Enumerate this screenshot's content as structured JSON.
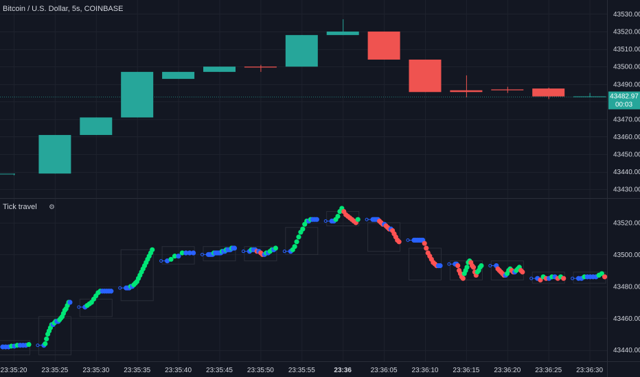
{
  "header": {
    "symbol_title": "Bitcoin / U.S. Dollar, 5s, COINBASE"
  },
  "indicator": {
    "name": "Tick travel",
    "settings_glyph": "⚙"
  },
  "last_price": {
    "value": 43482.97,
    "label": "43482.97",
    "countdown": "00:03"
  },
  "colors": {
    "background": "#131722",
    "grid": "#1e222d",
    "up": "#26a69a",
    "down": "#ef5350",
    "dot_up": "#00e676",
    "dot_down": "#ff5252",
    "dot_flat": "#2962ff",
    "axis_text": "#d1d4dc",
    "price_line": "#26a69a"
  },
  "chart_data": [
    {
      "type": "candlestick",
      "panel": "main",
      "title": "Bitcoin / U.S. Dollar, 5s, COINBASE",
      "ylim": [
        43425,
        43538
      ],
      "y_ticks": [
        43430,
        43440,
        43450,
        43460,
        43470,
        43480,
        43490,
        43500,
        43510,
        43520,
        43530
      ],
      "y_tick_labels": [
        "43430.00",
        "43440.00",
        "43450.00",
        "43460.00",
        "43470.00",
        "43480.00",
        "43490.00",
        "43500.00",
        "43510.00",
        "43520.00",
        "43530.00"
      ],
      "x_ticks": [
        "23:35:20",
        "23:35:25",
        "23:35:30",
        "23:35:35",
        "23:35:40",
        "23:35:45",
        "23:35:50",
        "23:35:55",
        "23:36",
        "23:36:05",
        "23:36:10",
        "23:36:15",
        "23:36:20",
        "23:36:25",
        "23:36:30"
      ],
      "candles": [
        {
          "time": "23:35:20",
          "open": 43438.5,
          "high": 43439,
          "low": 43438,
          "close": 43438.9
        },
        {
          "time": "23:35:25",
          "open": 43439,
          "high": 43461,
          "low": 43439,
          "close": 43461
        },
        {
          "time": "23:35:30",
          "open": 43461,
          "high": 43471,
          "low": 43461,
          "close": 43471
        },
        {
          "time": "23:35:35",
          "open": 43471,
          "high": 43497,
          "low": 43471,
          "close": 43497
        },
        {
          "time": "23:35:40",
          "open": 43493,
          "high": 43497,
          "low": 43493,
          "close": 43497
        },
        {
          "time": "23:35:45",
          "open": 43497,
          "high": 43500,
          "low": 43497,
          "close": 43500
        },
        {
          "time": "23:35:50",
          "open": 43500,
          "high": 43501,
          "low": 43497,
          "close": 43499.5
        },
        {
          "time": "23:35:55",
          "open": 43500,
          "high": 43518,
          "low": 43500,
          "close": 43518
        },
        {
          "time": "23:36",
          "open": 43518,
          "high": 43527,
          "low": 43518,
          "close": 43520
        },
        {
          "time": "23:36:05",
          "open": 43520,
          "high": 43520,
          "low": 43504,
          "close": 43504
        },
        {
          "time": "23:36:10",
          "open": 43504,
          "high": 43504,
          "low": 43485.5,
          "close": 43485.5
        },
        {
          "time": "23:36:15",
          "open": 43486.5,
          "high": 43495,
          "low": 43482.5,
          "close": 43485.5
        },
        {
          "time": "23:36:20",
          "open": 43487,
          "high": 43488.5,
          "low": 43485,
          "close": 43486.5
        },
        {
          "time": "23:36:25",
          "open": 43487.5,
          "high": 43488,
          "low": 43481.5,
          "close": 43483
        },
        {
          "time": "23:36:30",
          "open": 43483,
          "high": 43485,
          "low": 43482.5,
          "close": 43483
        }
      ]
    },
    {
      "type": "scatter",
      "panel": "indicator",
      "title": "Tick travel",
      "ylim": [
        43433,
        43535
      ],
      "y_ticks": [
        43440,
        43460,
        43480,
        43500,
        43520
      ],
      "y_tick_labels": [
        "43440.00",
        "43460.00",
        "43480.00",
        "43500.00",
        "43520.00"
      ],
      "boxes": [
        {
          "time": "23:35:20",
          "low": 43437,
          "high": 43446
        },
        {
          "time": "23:35:25",
          "low": 43437,
          "high": 43461
        },
        {
          "time": "23:35:30",
          "low": 43461,
          "high": 43472
        },
        {
          "time": "23:35:35",
          "low": 43471,
          "high": 43503
        },
        {
          "time": "23:35:40",
          "low": 43494,
          "high": 43505
        },
        {
          "time": "23:35:45",
          "low": 43496,
          "high": 43505
        },
        {
          "time": "23:35:50",
          "low": 43496,
          "high": 43505
        },
        {
          "time": "23:35:55",
          "low": 43500,
          "high": 43517
        },
        {
          "time": "23:36",
          "low": 43518,
          "high": 43527
        },
        {
          "time": "23:36:05",
          "low": 43502,
          "high": 43520
        },
        {
          "time": "23:36:10",
          "low": 43484,
          "high": 43504
        },
        {
          "time": "23:36:15",
          "low": 43484,
          "high": 43496
        },
        {
          "time": "23:36:20",
          "low": 43484,
          "high": 43496
        },
        {
          "time": "23:36:25",
          "low": 43482,
          "high": 43489
        },
        {
          "time": "23:36:30",
          "low": 43482,
          "high": 43489
        }
      ],
      "segments": [
        {
          "time": "23:35:20",
          "values": [
            43442,
            43442,
            43442,
            43442.5,
            43442.5,
            43443,
            43443,
            43443,
            43443,
            43443.5
          ]
        },
        {
          "time": "23:35:25",
          "values": [
            43443,
            43444,
            43447,
            43450,
            43452,
            43454,
            43456,
            43456,
            43457,
            43458,
            43458,
            43458,
            43459,
            43460,
            43461,
            43463,
            43465,
            43466,
            43468,
            43470,
            43470
          ]
        },
        {
          "time": "23:35:30",
          "values": [
            43467,
            43468,
            43469,
            43470,
            43472,
            43474,
            43476,
            43477,
            43477,
            43477,
            43477,
            43477,
            43477
          ]
        },
        {
          "time": "23:35:35",
          "values": [
            43479,
            43479,
            43479,
            43480,
            43480,
            43481,
            43482,
            43483,
            43485,
            43487,
            43489,
            43491,
            43493,
            43495,
            43497,
            43499,
            43501,
            43503
          ]
        },
        {
          "time": "23:35:40",
          "values": [
            43496,
            43497,
            43499,
            43499,
            43501,
            43501,
            43501,
            43501
          ]
        },
        {
          "time": "23:35:45",
          "values": [
            43500,
            43500,
            43500,
            43500,
            43501,
            43501,
            43501,
            43501,
            43501,
            43501,
            43502,
            43502,
            43502,
            43503,
            43503,
            43503,
            43503,
            43504,
            43504,
            43504
          ]
        },
        {
          "time": "23:35:50",
          "values": [
            43502,
            43503,
            43503,
            43503,
            43502,
            43502,
            43501,
            43500,
            43500,
            43501,
            43501,
            43502,
            43503,
            43503,
            43504
          ]
        },
        {
          "time": "23:35:55",
          "values": [
            43502,
            43503,
            43505,
            43508,
            43511,
            43514,
            43516,
            43519,
            43521,
            43521,
            43522,
            43522,
            43522,
            43522
          ]
        },
        {
          "time": "23:36",
          "values": [
            43521,
            43521,
            43522,
            43524,
            43527,
            43529,
            43527,
            43525,
            43524,
            43523,
            43522,
            43521,
            43520,
            43522
          ]
        },
        {
          "time": "23:36:05",
          "values": [
            43522,
            43522,
            43522,
            43522,
            43521,
            43520,
            43519,
            43519,
            43518,
            43517,
            43516,
            43516,
            43515,
            43513,
            43511,
            43509,
            43508
          ]
        },
        {
          "time": "23:36:10",
          "values": [
            43509,
            43509,
            43509,
            43509,
            43509,
            43509,
            43507,
            43504,
            43501,
            43499,
            43497,
            43495,
            43494,
            43493,
            43493,
            43493
          ]
        },
        {
          "time": "23:36:15",
          "values": [
            43494,
            43494,
            43493,
            43490,
            43488,
            43486,
            43485,
            43488,
            43490,
            43492,
            43495,
            43496,
            43495,
            43493,
            43492,
            43489,
            43487,
            43489,
            43490,
            43492,
            43493
          ]
        },
        {
          "time": "23:36:20",
          "values": [
            43493,
            43491,
            43490,
            43489,
            43488,
            43487,
            43487,
            43488,
            43490,
            43491,
            43490,
            43489,
            43489,
            43490,
            43491,
            43492,
            43490,
            43489
          ]
        },
        {
          "time": "23:36:25",
          "values": [
            43485,
            43484,
            43486,
            43485,
            43485,
            43486,
            43486,
            43485,
            43486,
            43485
          ]
        },
        {
          "time": "23:36:30",
          "values": [
            43485,
            43485,
            43486,
            43486,
            43486,
            43486,
            43486,
            43487,
            43488,
            43486
          ]
        }
      ]
    }
  ]
}
